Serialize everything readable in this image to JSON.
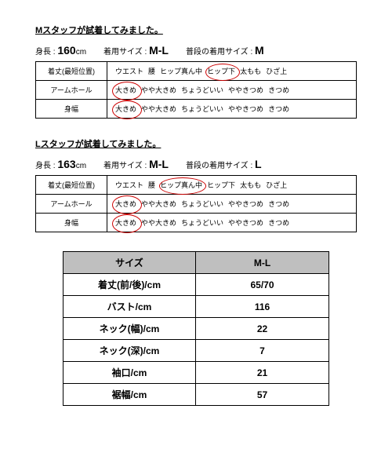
{
  "staff_sections": [
    {
      "title": "Mスタッフが試着してみました。",
      "height_label": "身長 :",
      "height_value": "160",
      "height_unit": "cm",
      "worn_label": "着用サイズ :",
      "worn_value": "M-L",
      "usual_label": "普段の着用サイズ :",
      "usual_value": "M",
      "rows": [
        {
          "label": "着丈(最短位置)",
          "options": [
            "ウエスト",
            "腰",
            "ヒップ真ん中",
            "ヒップ下",
            "太もも",
            "ひざ上"
          ],
          "selected_index": 3,
          "circle_w": 42,
          "circle_h": 20
        },
        {
          "label": "アームホール",
          "options": [
            "大きめ",
            "やや大きめ",
            "ちょうどいい",
            "ややきつめ",
            "きつめ"
          ],
          "selected_index": 0,
          "circle_w": 36,
          "circle_h": 22
        },
        {
          "label": "身幅",
          "options": [
            "大きめ",
            "やや大きめ",
            "ちょうどいい",
            "ややきつめ",
            "きつめ"
          ],
          "selected_index": 0,
          "circle_w": 36,
          "circle_h": 22
        }
      ]
    },
    {
      "title": "Lスタッフが試着してみました。",
      "height_label": "身長 :",
      "height_value": "163",
      "height_unit": "cm",
      "worn_label": "着用サイズ :",
      "worn_value": "M-L",
      "usual_label": "普段の着用サイズ :",
      "usual_value": "L",
      "rows": [
        {
          "label": "着丈(最短位置)",
          "options": [
            "ウエスト",
            "腰",
            "ヒップ真ん中",
            "ヒップ下",
            "太もも",
            "ひざ上"
          ],
          "selected_index": 2,
          "circle_w": 58,
          "circle_h": 20
        },
        {
          "label": "アームホール",
          "options": [
            "大きめ",
            "やや大きめ",
            "ちょうどいい",
            "ややきつめ",
            "きつめ"
          ],
          "selected_index": 0,
          "circle_w": 36,
          "circle_h": 22
        },
        {
          "label": "身幅",
          "options": [
            "大きめ",
            "やや大きめ",
            "ちょうどいい",
            "ややきつめ",
            "きつめ"
          ],
          "selected_index": 0,
          "circle_w": 36,
          "circle_h": 22
        }
      ]
    }
  ],
  "size_table": {
    "header": [
      "サイズ",
      "M-L"
    ],
    "rows": [
      [
        "着丈(前/後)/cm",
        "65/70"
      ],
      [
        "バスト/cm",
        "116"
      ],
      [
        "ネック(幅)/cm",
        "22"
      ],
      [
        "ネック(深)/cm",
        "7"
      ],
      [
        "袖口/cm",
        "21"
      ],
      [
        "裾幅/cm",
        "57"
      ]
    ]
  },
  "colors": {
    "circle": "#cc0000",
    "header_bg": "#bfbfbf",
    "border": "#000000",
    "bg": "#ffffff"
  }
}
